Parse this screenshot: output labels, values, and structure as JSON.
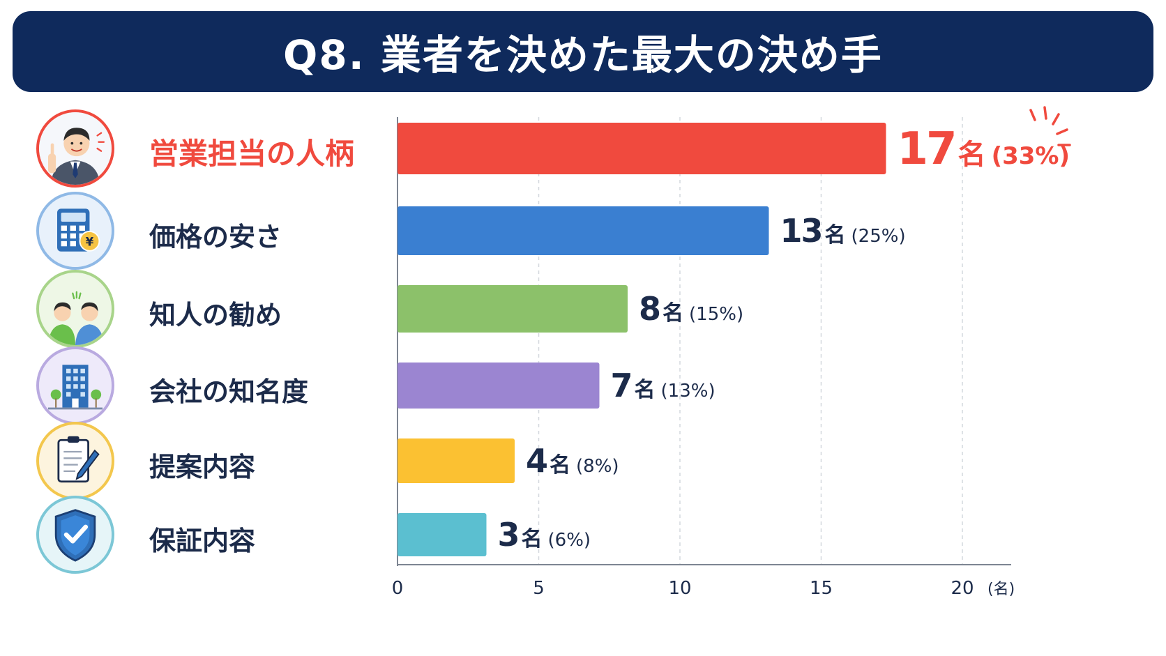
{
  "title": "Q8. 業者を決めた最大の決め手",
  "colors": {
    "title_bg": "#0f2a5c",
    "highlight": "#f04a3e",
    "text": "#1c2b4a"
  },
  "chart_data": {
    "type": "bar",
    "orientation": "horizontal",
    "categories": [
      "営業担当の人柄",
      "価格の安さ",
      "知人の勧め",
      "会社の知名度",
      "提案内容",
      "保証内容"
    ],
    "values": [
      17,
      13,
      8,
      7,
      4,
      3
    ],
    "value_labels": [
      "17",
      "13",
      "8",
      "7",
      "4",
      "3"
    ],
    "unit": "名",
    "percent_labels": [
      "(33%)",
      "(25%)",
      "(15%)",
      "(13%)",
      "(8%)",
      "(6%)"
    ],
    "bar_colors": [
      "#f04a3e",
      "#3a7fd1",
      "#8cc16a",
      "#9b85d1",
      "#fbc132",
      "#5bbfd0"
    ],
    "icons": [
      "businessman-icon",
      "calculator-yen-icon",
      "people-talking-icon",
      "office-building-icon",
      "clipboard-pen-icon",
      "shield-check-icon"
    ],
    "xlim": [
      0,
      22
    ],
    "xticks": [
      0,
      5,
      10,
      15,
      20
    ],
    "xtick_labels": [
      "0",
      "5",
      "10",
      "15",
      "20"
    ],
    "x_unit_label": "(名)",
    "grid": "vertical-dashed",
    "highlight_index": 0
  }
}
